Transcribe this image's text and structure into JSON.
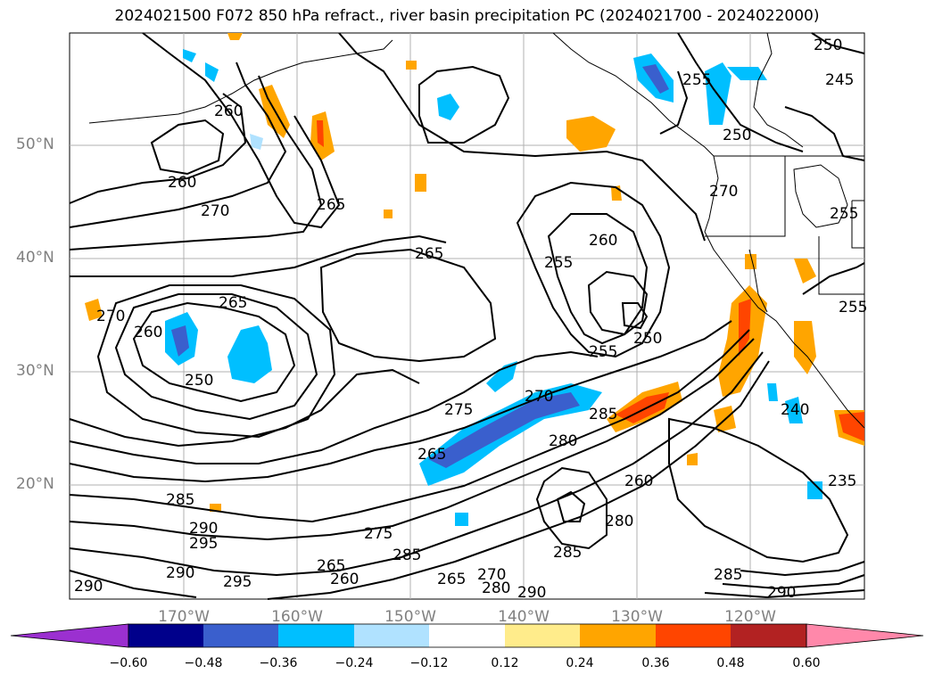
{
  "title": "2024021500 F072 850 hPa refract., river basin precipitation PC (2024021700 - 2024022000)",
  "lat_labels": [
    "50°N",
    "40°N",
    "30°N",
    "20°N"
  ],
  "lon_labels": [
    "170°W",
    "160°W",
    "150°W",
    "140°W",
    "130°W",
    "120°W"
  ],
  "contour_labels": [
    "250",
    "255",
    "245",
    "250",
    "260",
    "270",
    "260",
    "270",
    "265",
    "255",
    "265",
    "260",
    "265",
    "270",
    "260",
    "255",
    "250",
    "255",
    "250",
    "255",
    "240",
    "275",
    "270",
    "285",
    "265",
    "280",
    "260",
    "285",
    "290",
    "295",
    "275",
    "280",
    "285",
    "265",
    "270",
    "290",
    "285",
    "285",
    "295",
    "290",
    "260",
    "265",
    "280",
    "290",
    "235",
    "290"
  ],
  "colorbar": {
    "ticks": [
      "−0.60",
      "−0.48",
      "−0.36",
      "−0.24",
      "−0.12",
      "0.12",
      "0.24",
      "0.36",
      "0.48",
      "0.60"
    ],
    "colors": [
      "#9b30d0",
      "#00008b",
      "#3a5fcd",
      "#00bfff",
      "#b0e2ff",
      "#ffffff",
      "#ffec8b",
      "#ffa500",
      "#ff4500",
      "#b22222",
      "#ff88aa"
    ]
  },
  "colors": {
    "land_line": "#000000",
    "grid": "#b0b0b0",
    "contour": "#000000"
  }
}
